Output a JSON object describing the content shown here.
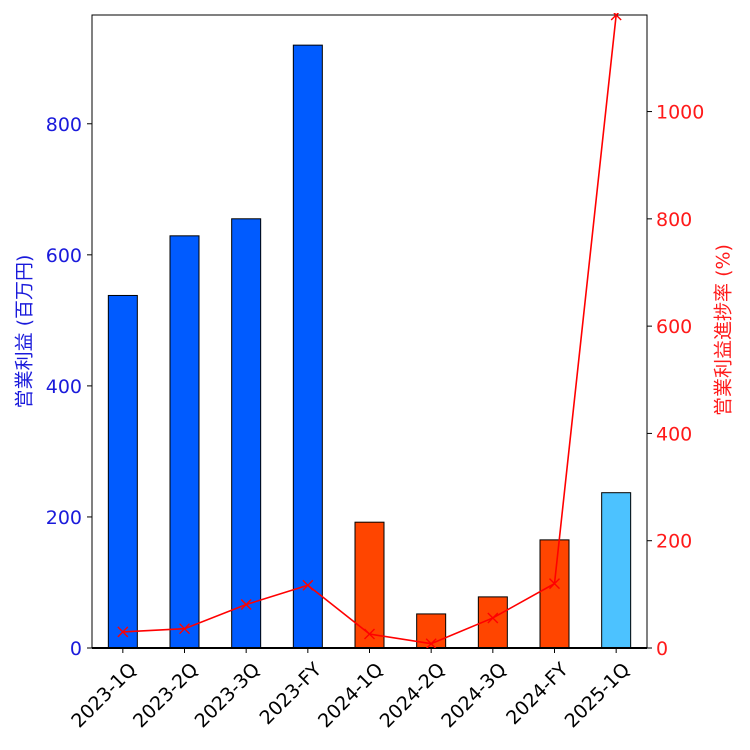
{
  "chart_data": {
    "type": "bar",
    "categories": [
      "2023-1Q",
      "2023-2Q",
      "2023-3Q",
      "2023-FY",
      "2024-1Q",
      "2024-2Q",
      "2024-3Q",
      "2024-FY",
      "2025-1Q"
    ],
    "series": [
      {
        "axis": "left",
        "type": "bar",
        "values": [
          538,
          629,
          655,
          920,
          192,
          52,
          78,
          165,
          237
        ],
        "colors": [
          "#005bff",
          "#005bff",
          "#005bff",
          "#005bff",
          "#ff4500",
          "#ff4500",
          "#ff4500",
          "#ff4500",
          "#4cc2ff"
        ]
      },
      {
        "axis": "right",
        "type": "line",
        "marker": "x",
        "color": "#ff0000",
        "values": [
          30,
          36,
          81,
          117,
          26,
          8,
          56,
          120,
          1180
        ]
      }
    ],
    "ylabel_left": "営業利益 (百万円)",
    "ylabel_right": "営業利益進捗率 (%)",
    "ylim_left": [
      0,
      966
    ],
    "ylim_right": [
      0,
      1180
    ],
    "yticks_left": [
      0,
      200,
      400,
      600,
      800
    ],
    "yticks_right": [
      0,
      200,
      400,
      600,
      800,
      1000
    ],
    "grid": false,
    "left_axis_color": "#1a1adb",
    "right_axis_color": "#ff1a1a"
  }
}
